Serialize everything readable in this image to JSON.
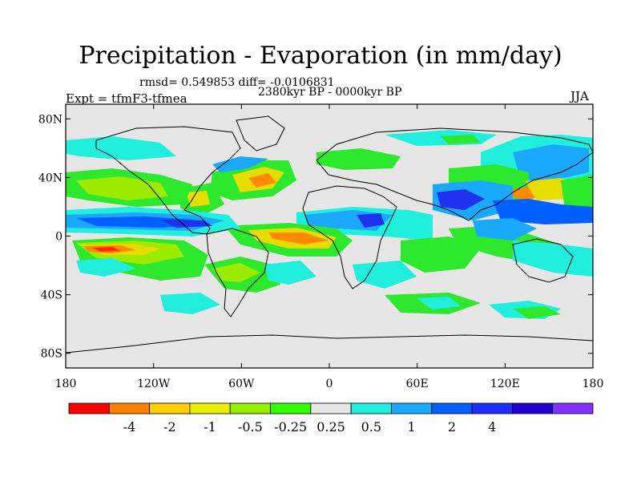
{
  "title": "Precipitation - Evaporation (in mm/day)",
  "stats": "rmsd= 0.549853 diff= -0.0106831",
  "period": "2380kyr BP - 0000kyr BP",
  "experiment": "Expt = tfmF3-tfmea",
  "season": "JJA",
  "map": {
    "lon_ticks": [
      "180",
      "120W",
      "60W",
      "0",
      "60E",
      "120E",
      "180"
    ],
    "lat_ticks": [
      "80N",
      "40N",
      "0",
      "40S",
      "80S"
    ],
    "background_color": "#e6e6e6"
  },
  "colorbar": {
    "labels": [
      "-4",
      "-2",
      "-1",
      "-0.5",
      "-0.25",
      "0.25",
      "0.5",
      "1",
      "2",
      "4"
    ],
    "colors": [
      "#ff0000",
      "#ff8000",
      "#ffd000",
      "#e8ee00",
      "#96ee00",
      "#32ff00",
      "#e6e6e6",
      "#22eedd",
      "#1ba9ff",
      "#0060ff",
      "#1e2eff",
      "#2000d0",
      "#8030ff"
    ]
  },
  "field_colors": {
    "red": "#ff2a00",
    "orange": "#ff8c00",
    "yellow": "#e6dc00",
    "lightgreen": "#9cea00",
    "green": "#2ee82e",
    "cyan": "#22eedd",
    "lightblue": "#1ba9ff",
    "blue": "#0060ff",
    "darkblue": "#2032ee"
  }
}
